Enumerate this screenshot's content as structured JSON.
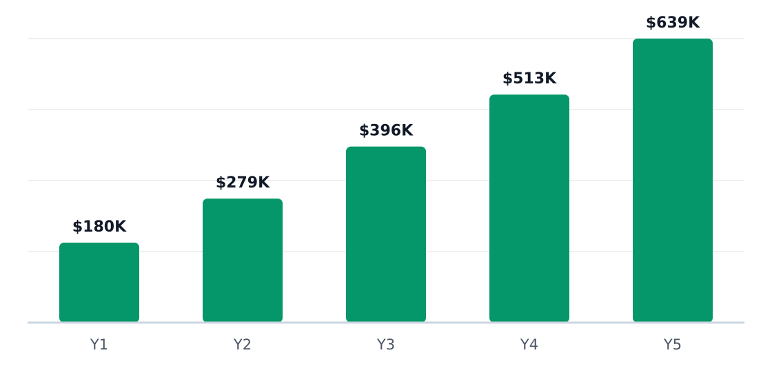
{
  "chart_data": {
    "type": "bar",
    "categories": [
      "Y1",
      "Y2",
      "Y3",
      "Y4",
      "Y5"
    ],
    "values": [
      180000,
      279000,
      396000,
      513000,
      639000
    ],
    "value_labels": [
      "$180K",
      "$279K",
      "$396K",
      "$513K",
      "$639K"
    ],
    "color": "#059669",
    "ylim": [
      0,
      639000
    ],
    "yticks": [
      0,
      159750,
      319500,
      479250,
      639000
    ],
    "grid": true
  }
}
